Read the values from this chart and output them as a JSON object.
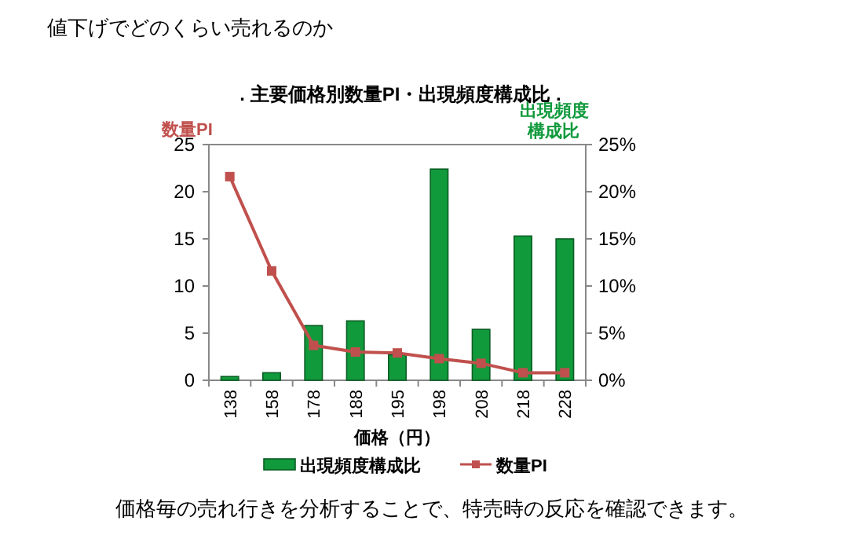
{
  "chart_data": {
    "type": "bar",
    "title": ". 主要価格別数量PI・出現頻度構成比 .",
    "annotations": [
      "値下げでどのくらい売れるのか",
      "価格毎の売れ行きを分析することで、特売時の反応を確認できます。"
    ],
    "xlabel": "価格（円）",
    "ylabel": "数量PI",
    "y2label": "出現頻度構成比",
    "categories": [
      "138",
      "158",
      "178",
      "188",
      "195",
      "198",
      "208",
      "218",
      "228"
    ],
    "series": [
      {
        "name": "出現頻度構成比",
        "type": "bar",
        "axis": "y2",
        "color": "#109a3c",
        "values": [
          0.4,
          0.8,
          5.8,
          6.3,
          2.7,
          22.4,
          5.4,
          15.3,
          15.0
        ]
      },
      {
        "name": "数量PI",
        "type": "line",
        "axis": "y",
        "color": "#c0504d",
        "values": [
          21.6,
          11.6,
          3.7,
          3.0,
          2.9,
          2.3,
          1.8,
          0.8,
          0.8
        ]
      }
    ],
    "ylim": [
      0,
      25
    ],
    "yticks": [
      0,
      5,
      10,
      15,
      20,
      25
    ],
    "y2lim": [
      0,
      25
    ],
    "y2ticks": [
      {
        "value": 0,
        "label": "0%"
      },
      {
        "value": 5,
        "label": "5%"
      },
      {
        "value": 10,
        "label": "10%"
      },
      {
        "value": 15,
        "label": "15%"
      },
      {
        "value": 20,
        "label": "20%"
      },
      {
        "value": 25,
        "label": "25%"
      }
    ],
    "marker": "square",
    "legend": "bottom",
    "grid": false
  }
}
